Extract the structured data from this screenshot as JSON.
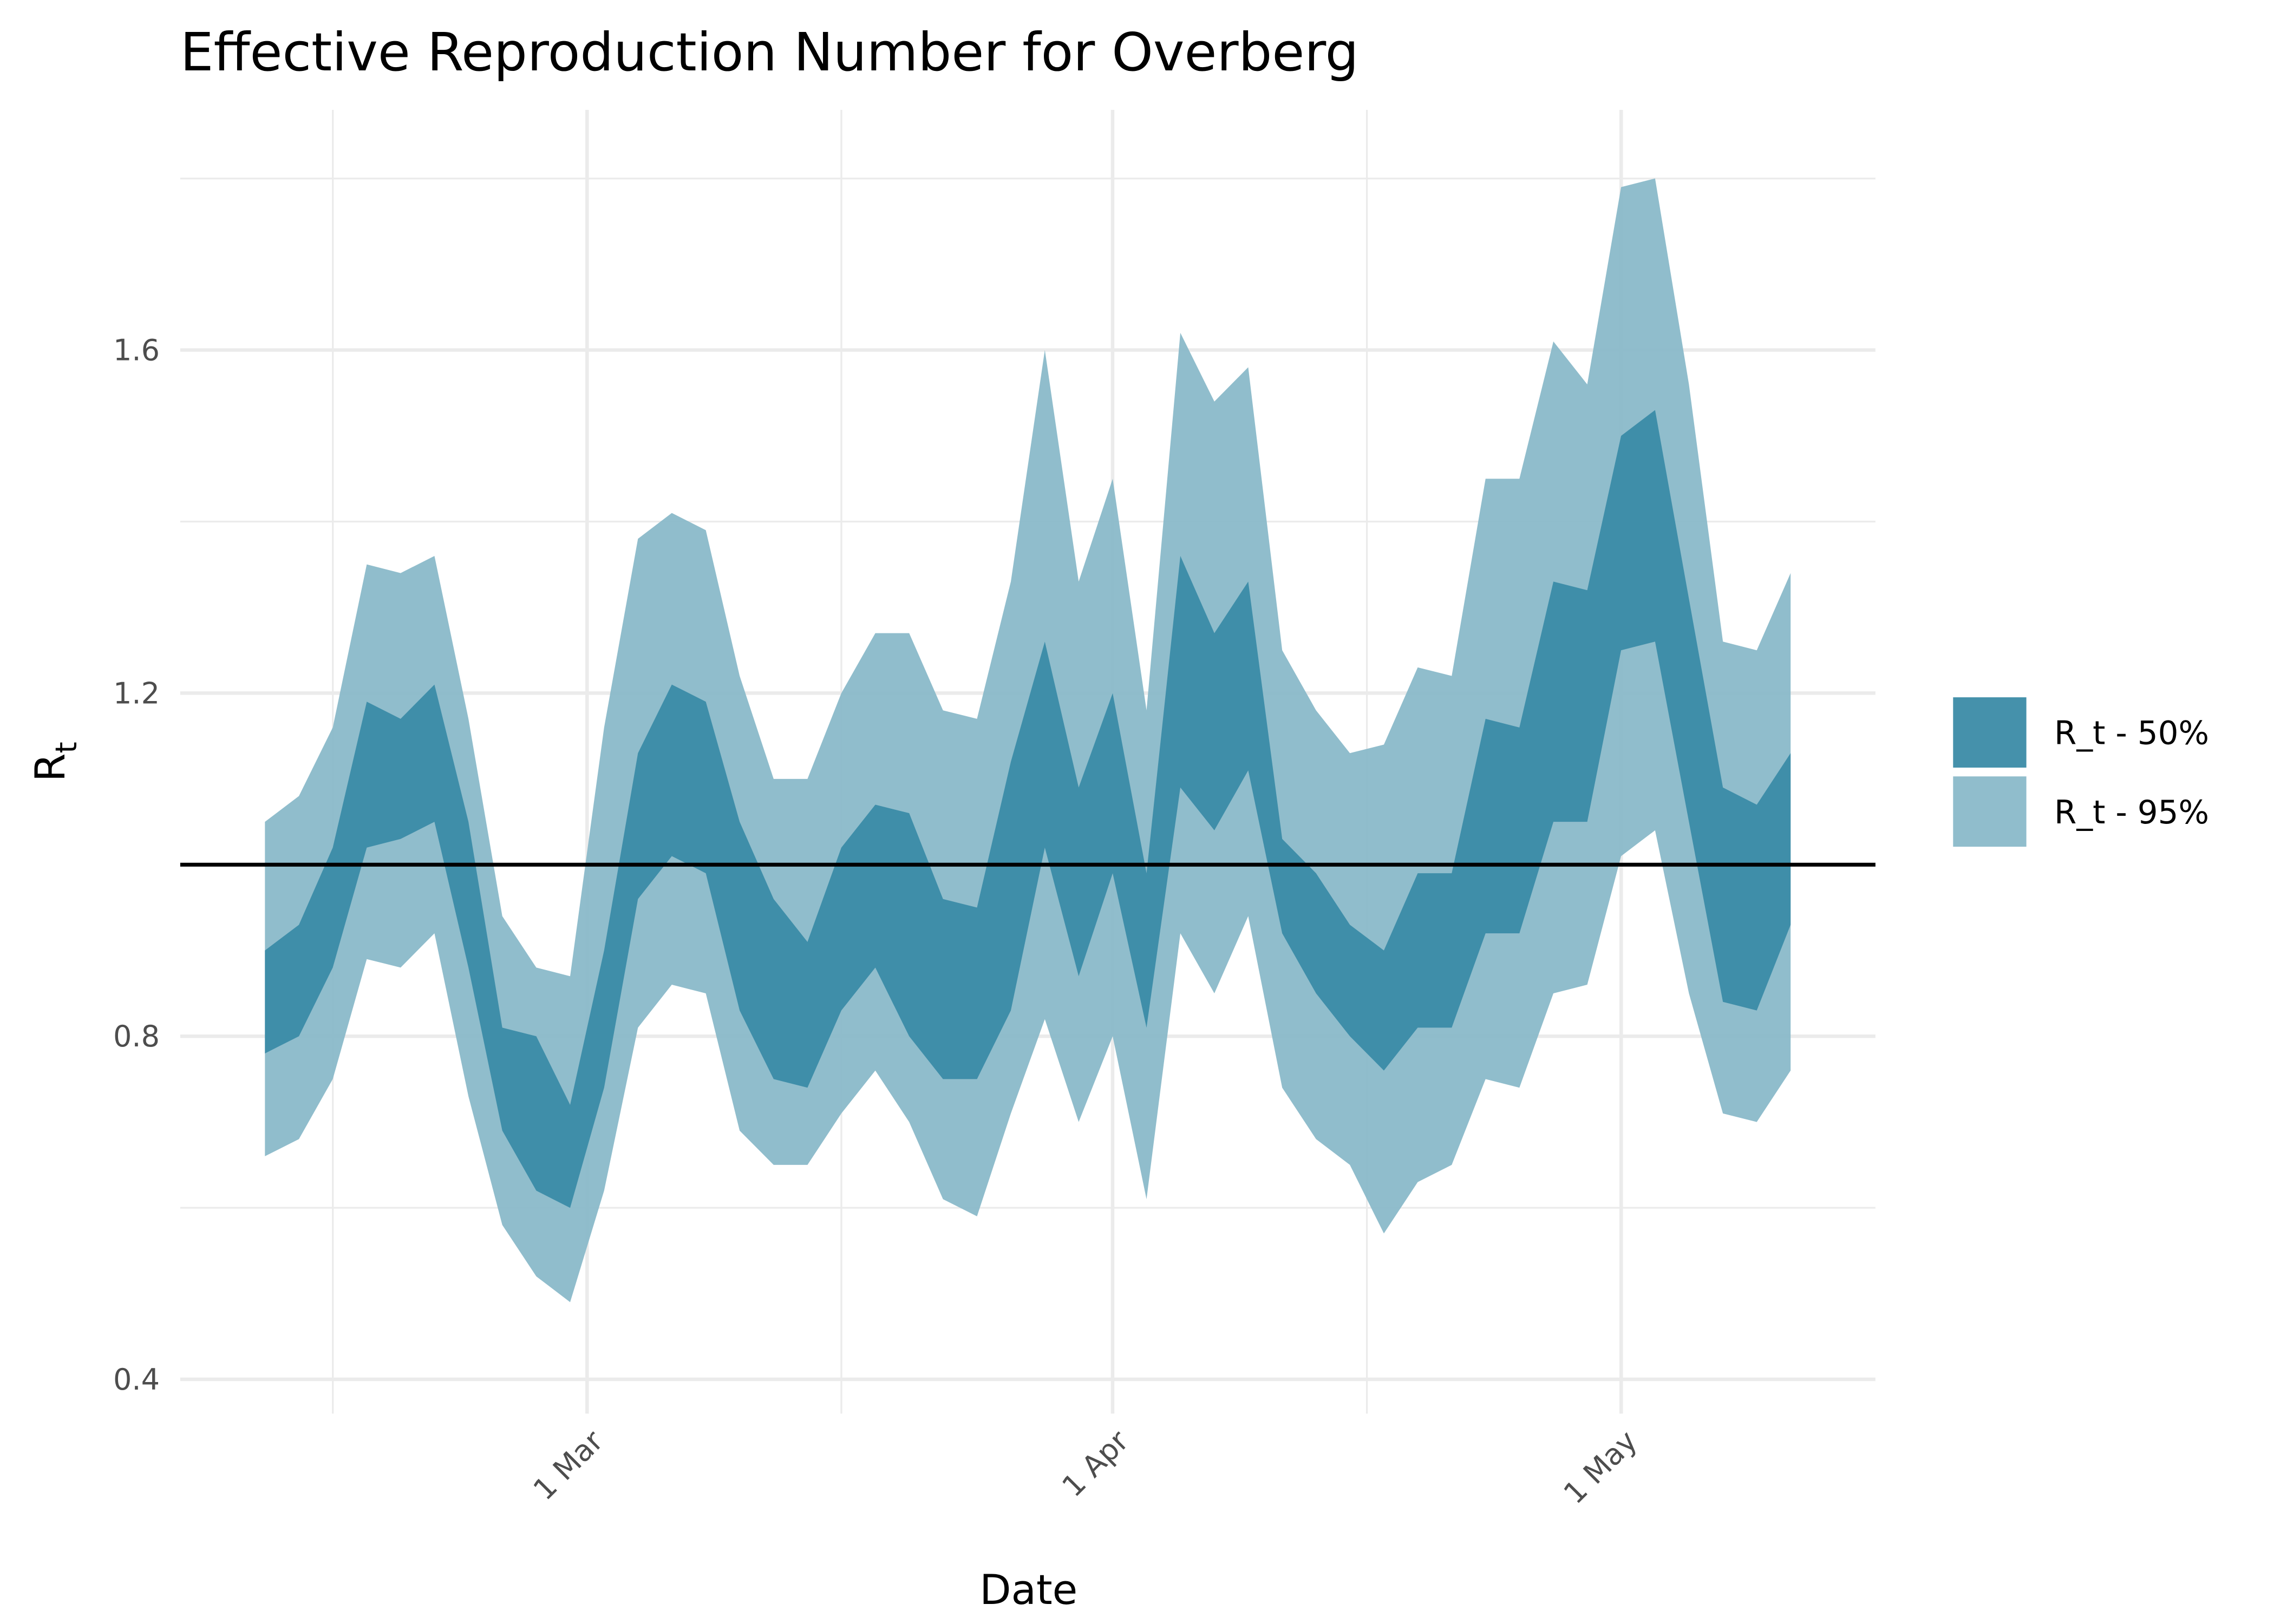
{
  "chart_data": {
    "type": "ribbon",
    "title": "Effective Reproduction Number for Overberg",
    "xlabel": "Date",
    "ylabel": "R",
    "ylabel_sub": "t",
    "x": [
      "10 Feb",
      "12 Feb",
      "14 Feb",
      "16 Feb",
      "18 Feb",
      "20 Feb",
      "22 Feb",
      "24 Feb",
      "26 Feb",
      "28 Feb",
      "2 Mar",
      "4 Mar",
      "6 Mar",
      "8 Mar",
      "10 Mar",
      "12 Mar",
      "14 Mar",
      "16 Mar",
      "18 Mar",
      "20 Mar",
      "22 Mar",
      "24 Mar",
      "26 Mar",
      "28 Mar",
      "30 Mar",
      "1 Apr",
      "3 Apr",
      "5 Apr",
      "7 Apr",
      "9 Apr",
      "11 Apr",
      "13 Apr",
      "15 Apr",
      "17 Apr",
      "19 Apr",
      "21 Apr",
      "23 Apr",
      "25 Apr",
      "27 Apr",
      "29 Apr",
      "1 May",
      "3 May",
      "5 May",
      "7 May",
      "9 May",
      "11 May"
    ],
    "series": [
      {
        "name": "R_t - 95%",
        "color": "#8ab9c9",
        "upper": [
          1.05,
          1.08,
          1.16,
          1.35,
          1.34,
          1.36,
          1.17,
          0.94,
          0.88,
          0.87,
          1.16,
          1.38,
          1.41,
          1.39,
          1.22,
          1.1,
          1.1,
          1.2,
          1.27,
          1.27,
          1.18,
          1.17,
          1.33,
          1.6,
          1.33,
          1.45,
          1.18,
          1.62,
          1.54,
          1.58,
          1.25,
          1.18,
          1.13,
          1.14,
          1.23,
          1.22,
          1.45,
          1.45,
          1.61,
          1.56,
          1.79,
          1.8,
          1.56,
          1.26,
          1.25,
          1.34
        ],
        "lower": [
          0.66,
          0.68,
          0.75,
          0.89,
          0.88,
          0.92,
          0.73,
          0.58,
          0.52,
          0.49,
          0.62,
          0.81,
          0.86,
          0.85,
          0.69,
          0.65,
          0.65,
          0.71,
          0.76,
          0.7,
          0.61,
          0.59,
          0.71,
          0.82,
          0.7,
          0.8,
          0.61,
          0.92,
          0.85,
          0.94,
          0.74,
          0.68,
          0.65,
          0.57,
          0.63,
          0.65,
          0.75,
          0.74,
          0.85,
          0.86,
          1.01,
          1.04,
          0.85,
          0.71,
          0.7,
          0.76
        ]
      },
      {
        "name": "R_t - 50%",
        "color": "#3b8ba6",
        "upper": [
          0.9,
          0.93,
          1.02,
          1.19,
          1.17,
          1.21,
          1.05,
          0.81,
          0.8,
          0.72,
          0.9,
          1.13,
          1.21,
          1.19,
          1.05,
          0.96,
          0.91,
          1.02,
          1.07,
          1.06,
          0.96,
          0.95,
          1.12,
          1.26,
          1.09,
          1.2,
          0.99,
          1.36,
          1.27,
          1.33,
          1.03,
          0.99,
          0.93,
          0.9,
          0.99,
          0.99,
          1.17,
          1.16,
          1.33,
          1.32,
          1.5,
          1.53,
          1.31,
          1.09,
          1.07,
          1.13
        ],
        "lower": [
          0.78,
          0.8,
          0.88,
          1.02,
          1.03,
          1.05,
          0.88,
          0.69,
          0.62,
          0.6,
          0.74,
          0.96,
          1.01,
          0.99,
          0.83,
          0.75,
          0.74,
          0.83,
          0.88,
          0.8,
          0.75,
          0.75,
          0.83,
          1.02,
          0.87,
          0.99,
          0.81,
          1.09,
          1.04,
          1.11,
          0.92,
          0.85,
          0.8,
          0.76,
          0.81,
          0.81,
          0.92,
          0.92,
          1.05,
          1.05,
          1.25,
          1.26,
          1.05,
          0.84,
          0.83,
          0.93
        ]
      }
    ],
    "hline": 1.0,
    "xlim": [
      "5 Feb",
      "16 May"
    ],
    "xticks": [
      "1 Mar",
      "1 Apr",
      "1 May"
    ],
    "x_minor_grid": [
      "14 Feb",
      "16 Mar",
      "16 Apr"
    ],
    "ylim": [
      0.36,
      1.88
    ],
    "yticks": [
      0.4,
      0.8,
      1.2,
      1.6
    ],
    "y_minor_grid": [
      0.6,
      1.0,
      1.4,
      1.8
    ],
    "grid": true,
    "legend": "right"
  }
}
